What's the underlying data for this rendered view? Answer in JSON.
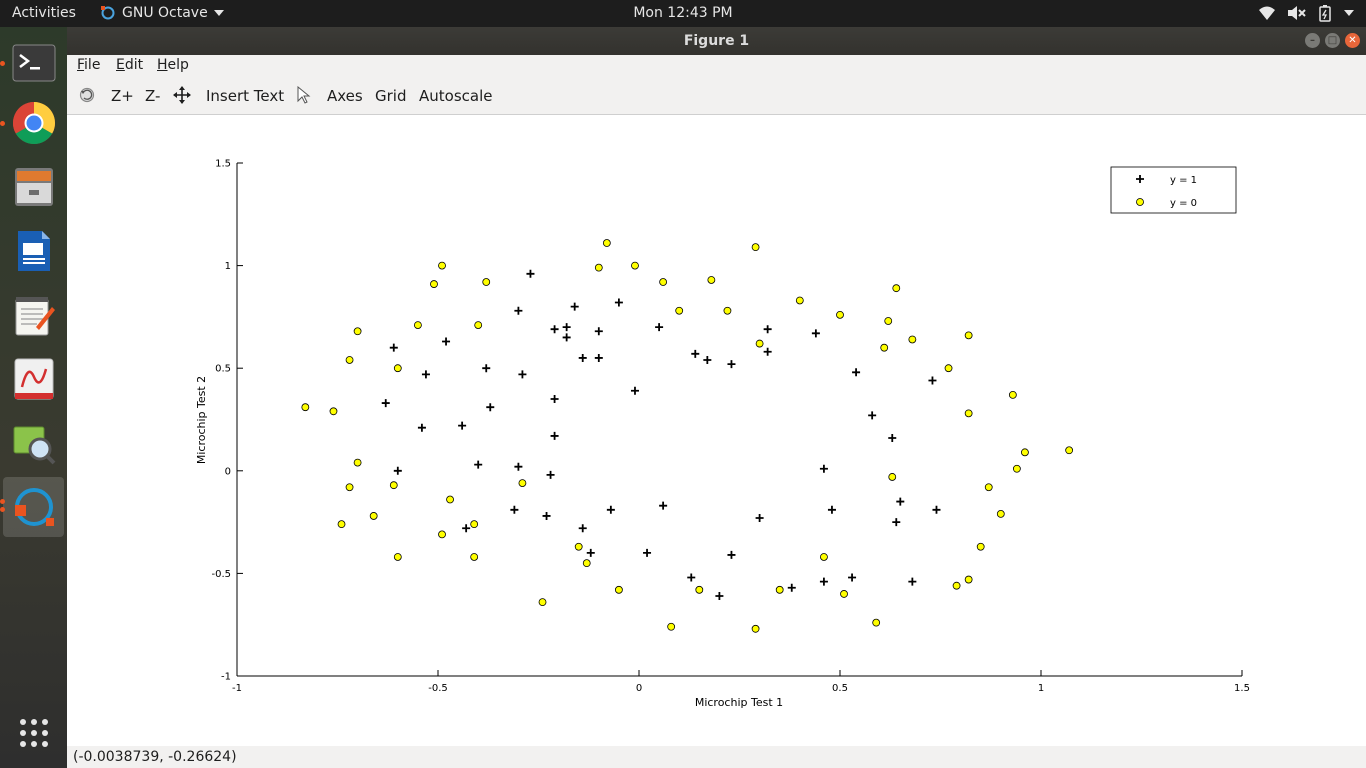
{
  "topbar": {
    "activities": "Activities",
    "app_name": "GNU Octave",
    "clock": "Mon 12:43 PM",
    "icons": [
      "wifi-icon",
      "volume-muted-icon",
      "battery-icon",
      "system-menu-chevron-icon"
    ]
  },
  "dock": {
    "items": [
      {
        "name": "terminal",
        "icon": "terminal-icon"
      },
      {
        "name": "chrome",
        "icon": "chrome-icon"
      },
      {
        "name": "files",
        "icon": "files-icon"
      },
      {
        "name": "writer",
        "icon": "writer-icon"
      },
      {
        "name": "text-editor",
        "icon": "text-editor-icon"
      },
      {
        "name": "pdf-viewer",
        "icon": "pdf-viewer-icon"
      },
      {
        "name": "image-viewer",
        "icon": "image-viewer-icon"
      },
      {
        "name": "octave",
        "icon": "octave-icon"
      }
    ],
    "show_apps_icon": "show-apps-grid-icon"
  },
  "window": {
    "title": "Figure 1",
    "menus": [
      {
        "label": "File",
        "mnemonic": "F",
        "rest": "ile"
      },
      {
        "label": "Edit",
        "mnemonic": "E",
        "rest": "dit"
      },
      {
        "label": "Help",
        "mnemonic": "H",
        "rest": "elp"
      }
    ],
    "toolbar": {
      "rotate_icon": "rotate-icon",
      "zoom_in": "Z+",
      "zoom_out": "Z-",
      "pan_icon": "pan-arrows-icon",
      "insert_text": "Insert Text",
      "select_icon": "pointer-icon",
      "axes": "Axes",
      "grid": "Grid",
      "autoscale": "Autoscale"
    },
    "status": "(-0.0038739, -0.26624)"
  },
  "chart_data": {
    "type": "scatter",
    "xlabel": "Microchip Test 1",
    "ylabel": "Microchip Test 2",
    "xlim": [
      -1,
      1.5
    ],
    "ylim": [
      -1,
      1.5
    ],
    "xticks": [
      "-1",
      "-0.5",
      "0",
      "0.5",
      "1",
      "1.5"
    ],
    "yticks": [
      "-1",
      "-0.5",
      "0",
      "0.5",
      "1",
      "1.5"
    ],
    "grid": false,
    "legend_position": "top-right",
    "series": [
      {
        "name": "y = 1",
        "marker": "plus",
        "color": "#000000",
        "points": [
          [
            -0.27,
            0.96
          ],
          [
            -0.3,
            0.78
          ],
          [
            -0.16,
            0.8
          ],
          [
            -0.05,
            0.82
          ],
          [
            -0.21,
            0.69
          ],
          [
            -0.18,
            0.7
          ],
          [
            -0.18,
            0.65
          ],
          [
            -0.1,
            0.68
          ],
          [
            0.05,
            0.7
          ],
          [
            -0.61,
            0.6
          ],
          [
            -0.48,
            0.63
          ],
          [
            -0.53,
            0.47
          ],
          [
            -0.38,
            0.5
          ],
          [
            -0.29,
            0.47
          ],
          [
            -0.14,
            0.55
          ],
          [
            -0.1,
            0.55
          ],
          [
            0.14,
            0.57
          ],
          [
            0.17,
            0.54
          ],
          [
            0.23,
            0.52
          ],
          [
            0.32,
            0.69
          ],
          [
            0.32,
            0.58
          ],
          [
            0.44,
            0.67
          ],
          [
            0.54,
            0.48
          ],
          [
            0.73,
            0.44
          ],
          [
            -0.63,
            0.33
          ],
          [
            -0.37,
            0.31
          ],
          [
            -0.21,
            0.35
          ],
          [
            -0.01,
            0.39
          ],
          [
            0.58,
            0.27
          ],
          [
            -0.54,
            0.21
          ],
          [
            -0.44,
            0.22
          ],
          [
            -0.21,
            0.17
          ],
          [
            0.63,
            0.16
          ],
          [
            -0.6,
            0.0
          ],
          [
            -0.4,
            0.03
          ],
          [
            -0.3,
            0.02
          ],
          [
            -0.22,
            -0.02
          ],
          [
            0.46,
            0.01
          ],
          [
            0.65,
            -0.15
          ],
          [
            -0.31,
            -0.19
          ],
          [
            -0.23,
            -0.22
          ],
          [
            -0.07,
            -0.19
          ],
          [
            0.06,
            -0.17
          ],
          [
            0.3,
            -0.23
          ],
          [
            0.48,
            -0.19
          ],
          [
            0.64,
            -0.25
          ],
          [
            0.74,
            -0.19
          ],
          [
            -0.43,
            -0.28
          ],
          [
            -0.14,
            -0.28
          ],
          [
            -0.12,
            -0.4
          ],
          [
            0.02,
            -0.4
          ],
          [
            0.23,
            -0.41
          ],
          [
            0.13,
            -0.52
          ],
          [
            0.2,
            -0.61
          ],
          [
            0.38,
            -0.57
          ],
          [
            0.46,
            -0.54
          ],
          [
            0.53,
            -0.52
          ],
          [
            0.68,
            -0.54
          ]
        ]
      },
      {
        "name": "y = 0",
        "marker": "circle",
        "color": "#ffff00",
        "points": [
          [
            -0.08,
            1.11
          ],
          [
            0.29,
            1.09
          ],
          [
            -0.49,
            1.0
          ],
          [
            -0.1,
            0.99
          ],
          [
            -0.01,
            1.0
          ],
          [
            -0.51,
            0.91
          ],
          [
            -0.38,
            0.92
          ],
          [
            0.06,
            0.92
          ],
          [
            0.18,
            0.93
          ],
          [
            0.64,
            0.89
          ],
          [
            0.4,
            0.83
          ],
          [
            0.1,
            0.78
          ],
          [
            0.22,
            0.78
          ],
          [
            0.5,
            0.76
          ],
          [
            -0.55,
            0.71
          ],
          [
            -0.4,
            0.71
          ],
          [
            0.62,
            0.73
          ],
          [
            -0.7,
            0.68
          ],
          [
            0.82,
            0.66
          ],
          [
            0.3,
            0.62
          ],
          [
            0.68,
            0.64
          ],
          [
            0.61,
            0.6
          ],
          [
            -0.72,
            0.54
          ],
          [
            -0.6,
            0.5
          ],
          [
            0.77,
            0.5
          ],
          [
            -0.83,
            0.31
          ],
          [
            -0.76,
            0.29
          ],
          [
            0.93,
            0.37
          ],
          [
            0.82,
            0.28
          ],
          [
            -0.7,
            0.04
          ],
          [
            0.96,
            0.09
          ],
          [
            1.07,
            0.1
          ],
          [
            0.94,
            0.01
          ],
          [
            0.63,
            -0.03
          ],
          [
            -0.72,
            -0.08
          ],
          [
            -0.61,
            -0.07
          ],
          [
            -0.29,
            -0.06
          ],
          [
            0.87,
            -0.08
          ],
          [
            -0.47,
            -0.14
          ],
          [
            -0.66,
            -0.22
          ],
          [
            0.9,
            -0.21
          ],
          [
            -0.74,
            -0.26
          ],
          [
            -0.41,
            -0.26
          ],
          [
            -0.49,
            -0.31
          ],
          [
            -0.15,
            -0.37
          ],
          [
            0.85,
            -0.37
          ],
          [
            -0.6,
            -0.42
          ],
          [
            -0.41,
            -0.42
          ],
          [
            0.46,
            -0.42
          ],
          [
            -0.13,
            -0.45
          ],
          [
            0.82,
            -0.53
          ],
          [
            0.79,
            -0.56
          ],
          [
            -0.05,
            -0.58
          ],
          [
            0.15,
            -0.58
          ],
          [
            0.35,
            -0.58
          ],
          [
            0.51,
            -0.6
          ],
          [
            -0.24,
            -0.64
          ],
          [
            0.59,
            -0.74
          ],
          [
            0.08,
            -0.76
          ],
          [
            0.29,
            -0.77
          ]
        ]
      }
    ]
  }
}
